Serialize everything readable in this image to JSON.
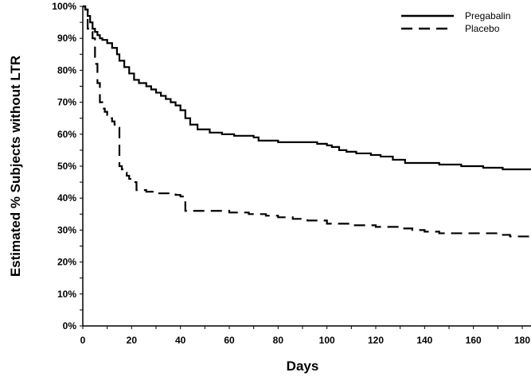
{
  "chart_data": {
    "type": "line",
    "subtype": "kaplan-meier step",
    "title": "",
    "xlabel": "Days",
    "ylabel": "Estimated % Subjects without LTR",
    "xlim": [
      0,
      185
    ],
    "ylim": [
      0,
      100
    ],
    "x_ticks": [
      0,
      20,
      40,
      60,
      80,
      100,
      120,
      140,
      160,
      180
    ],
    "x_tick_labels": [
      "0",
      "20",
      "40",
      "60",
      "80",
      "100",
      "120",
      "140",
      "160",
      "180"
    ],
    "x_minor_step": 10,
    "y_ticks": [
      0,
      10,
      20,
      30,
      40,
      50,
      60,
      70,
      80,
      90,
      100
    ],
    "y_tick_labels": [
      "0%",
      "10%",
      "20%",
      "30%",
      "40%",
      "50%",
      "60%",
      "70%",
      "80%",
      "90%",
      "100%"
    ],
    "y_minor_step": 5,
    "grid": false,
    "legend_position": "top-right",
    "series": [
      {
        "name": "Pregabalin",
        "style": "solid",
        "x": [
          0,
          1,
          2,
          3,
          4,
          5,
          6,
          7,
          8,
          10,
          12,
          14,
          15,
          17,
          19,
          21,
          23,
          26,
          28,
          30,
          32,
          34,
          36,
          38,
          40,
          42,
          44,
          47,
          52,
          57,
          62,
          70,
          72,
          80,
          88,
          96,
          100,
          102,
          105,
          108,
          112,
          118,
          122,
          127,
          132,
          140,
          146,
          150,
          155,
          160,
          164,
          172,
          185
        ],
        "y": [
          100,
          99,
          97,
          95,
          93,
          92,
          91,
          90,
          89.5,
          88.5,
          87,
          85,
          83,
          81,
          79,
          77,
          76,
          75,
          74,
          73,
          72,
          71,
          70,
          69,
          67.5,
          65,
          63,
          61.5,
          60.5,
          60,
          59.5,
          59,
          58,
          57.5,
          57.5,
          57,
          56.5,
          56,
          55,
          54.5,
          54,
          53.5,
          53,
          52,
          51,
          51,
          50.5,
          50.5,
          50,
          50,
          49.5,
          49,
          49
        ]
      },
      {
        "name": "Placebo",
        "style": "dashed",
        "x": [
          0,
          1,
          2,
          3,
          4,
          5,
          6,
          7,
          8,
          9,
          10,
          11,
          12,
          13,
          14,
          15,
          16,
          17,
          18,
          19,
          20,
          22,
          26,
          30,
          34,
          38,
          40,
          41,
          42,
          50,
          60,
          68,
          75,
          80,
          86,
          92,
          100,
          110,
          120,
          125,
          130,
          135,
          140,
          146,
          150,
          160,
          170,
          175,
          185
        ],
        "y": [
          100,
          99,
          93,
          92,
          90,
          82,
          76,
          70,
          68,
          67,
          66,
          65,
          64,
          63,
          62,
          50,
          49,
          48,
          47,
          46,
          45,
          42.5,
          42,
          41.5,
          41.5,
          41,
          40.5,
          40,
          36,
          36,
          35.5,
          35,
          34.5,
          34,
          33.5,
          33,
          32,
          31.5,
          31,
          31,
          30.5,
          30,
          29.5,
          29,
          29,
          29,
          28.5,
          28,
          28
        ]
      }
    ]
  },
  "legend": {
    "items": [
      {
        "label": "Pregabalin",
        "style": "solid"
      },
      {
        "label": "Placebo",
        "style": "dashed"
      }
    ]
  },
  "axes": {
    "x_title": "Days",
    "y_title": "Estimated % Subjects without LTR"
  }
}
